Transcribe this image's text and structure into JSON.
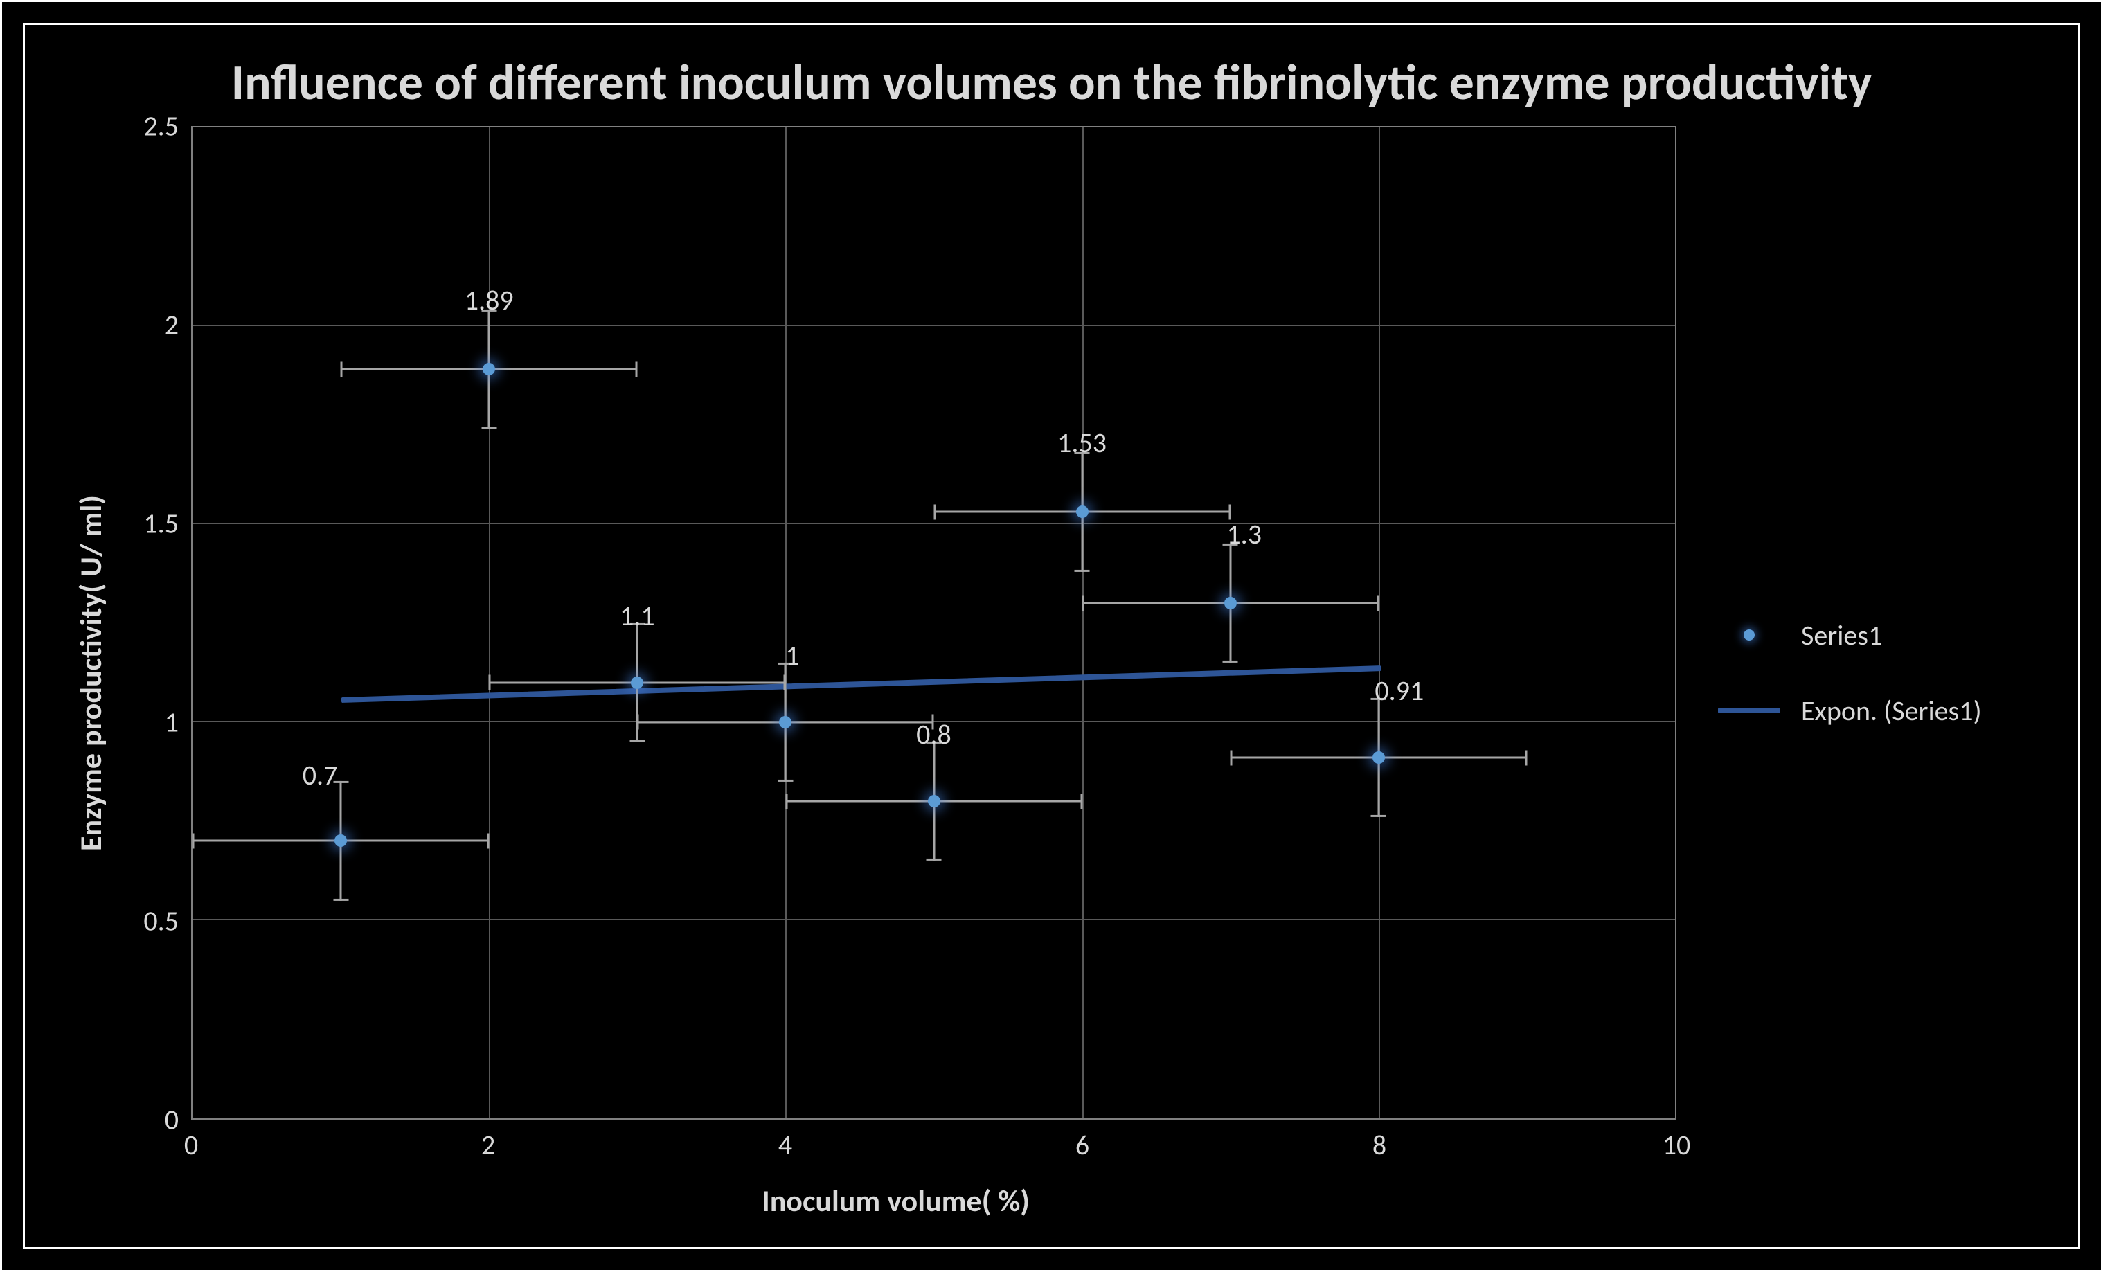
{
  "chart": {
    "type": "scatter",
    "title": "Influence of different inoculum volumes on the fibrinolytic enzyme productivity",
    "title_fontsize": 72,
    "background_color": "#000000",
    "frame_border_color": "#ffffff",
    "plot_border_color": "#808080",
    "grid_color": "#595959",
    "text_color": "#d9d9d9",
    "x_axis": {
      "label": "Inoculum volume( %)",
      "label_fontsize": 44,
      "min": 0,
      "max": 10,
      "tick_step": 2,
      "ticks": [
        0,
        2,
        4,
        6,
        8,
        10
      ],
      "tick_fontsize": 40
    },
    "y_axis": {
      "label": "Enzyme productivity( U/ ml)",
      "label_fontsize": 44,
      "min": 0,
      "max": 2.5,
      "tick_step": 0.5,
      "ticks": [
        0,
        0.5,
        1,
        1.5,
        2,
        2.5
      ],
      "tick_fontsize": 40
    },
    "series": {
      "name": "Series1",
      "marker_color": "#5b9bd5",
      "marker_glow_color": "rgba(70,130,220,0.55)",
      "marker_size": 18,
      "error_bar_color": "#a6a6a6",
      "x_error": 1.0,
      "y_error": 0.15,
      "data_label_fontsize": 40,
      "points": [
        {
          "x": 1,
          "y": 0.7,
          "label": "0.7",
          "label_dx": -30,
          "label_dy": -70
        },
        {
          "x": 2,
          "y": 1.89,
          "label": "1.89",
          "label_dx": 0,
          "label_dy": -75
        },
        {
          "x": 3,
          "y": 1.1,
          "label": "1.1",
          "label_dx": 0,
          "label_dy": -72
        },
        {
          "x": 4,
          "y": 1.0,
          "label": "1",
          "label_dx": 10,
          "label_dy": -72
        },
        {
          "x": 5,
          "y": 0.8,
          "label": "0.8",
          "label_dx": 0,
          "label_dy": -72
        },
        {
          "x": 6,
          "y": 1.53,
          "label": "1.53",
          "label_dx": 0,
          "label_dy": -75
        },
        {
          "x": 7,
          "y": 1.3,
          "label": "1.3",
          "label_dx": 20,
          "label_dy": -75
        },
        {
          "x": 8,
          "y": 0.91,
          "label": "0.91",
          "label_dx": 30,
          "label_dy": -72
        }
      ]
    },
    "trendline": {
      "name": "Expon. (Series1)",
      "color": "#2e5597",
      "width": 8,
      "x_start": 1.0,
      "y_start": 1.06,
      "x_end": 8.0,
      "y_end": 1.14
    },
    "legend": {
      "fontsize": 40,
      "items": [
        {
          "type": "dot",
          "label": "Series1"
        },
        {
          "type": "line",
          "label": "Expon. (Series1)"
        }
      ]
    }
  }
}
